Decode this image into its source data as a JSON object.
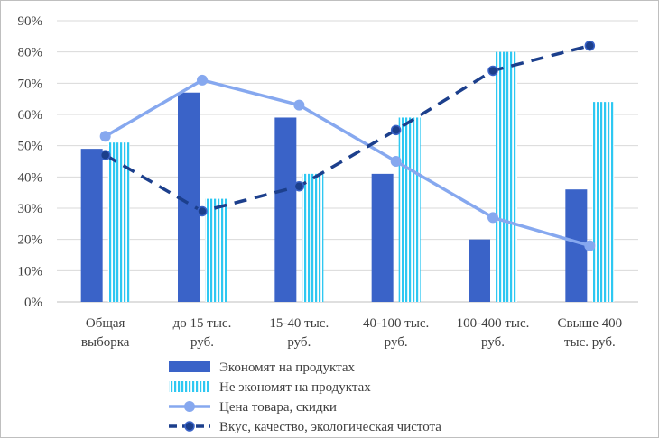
{
  "colors": {
    "economize": "#3a63c8",
    "not_economize": "#2ec8f2",
    "price_line": "#86a8ef",
    "quality_line": "#1c3f8c",
    "grid": "#d9d9d9",
    "axis": "#bfbfbf"
  },
  "chart_data": {
    "type": "bar",
    "title": "",
    "xlabel": "",
    "ylabel": "",
    "ylim": [
      0,
      90
    ],
    "y_ticks": [
      "0%",
      "10%",
      "20%",
      "30%",
      "40%",
      "50%",
      "60%",
      "70%",
      "80%",
      "90%"
    ],
    "grid": true,
    "legend_position": "bottom",
    "categories": [
      [
        "Общая",
        "выборка"
      ],
      [
        "до 15 тыс.",
        "руб."
      ],
      [
        "15-40 тыс.",
        "руб."
      ],
      [
        "40-100 тыс.",
        "руб."
      ],
      [
        "100-400 тыс.",
        "руб."
      ],
      [
        "Свыше 400",
        "тыс. руб."
      ]
    ],
    "series": [
      {
        "name": "Экономят на продуктах",
        "kind": "bar",
        "style": "solid",
        "values": [
          49,
          67,
          59,
          41,
          20,
          36
        ]
      },
      {
        "name": "Не экономят на продуктах",
        "kind": "bar",
        "style": "striped",
        "values": [
          51,
          33,
          41,
          59,
          80,
          64
        ]
      },
      {
        "name": "Цена товара, скидки",
        "kind": "line",
        "style": "solid",
        "values": [
          53,
          71,
          63,
          45,
          27,
          18
        ]
      },
      {
        "name": "Вкус, качество, экологическая чистота",
        "kind": "line",
        "style": "dashed",
        "values": [
          47,
          29,
          37,
          55,
          74,
          82
        ]
      }
    ]
  }
}
